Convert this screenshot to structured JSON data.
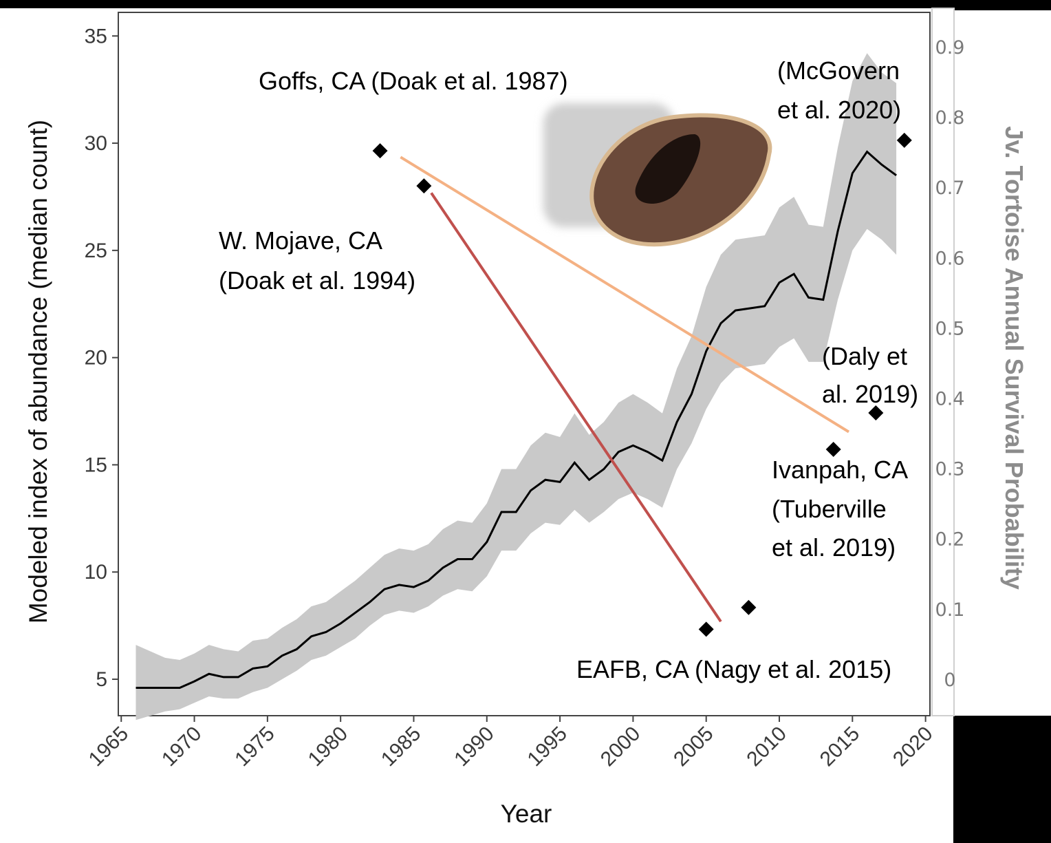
{
  "chart_data": {
    "type": "line",
    "x_label": "Year",
    "y_label": "Modeled index of abundance (median count)",
    "y2_label": "Jv. Tortoise Annual Survival Probability",
    "xlim": [
      1964.8,
      2020.3
    ],
    "xticks": [
      1965,
      1970,
      1975,
      1980,
      1985,
      1990,
      1995,
      2000,
      2005,
      2010,
      2015,
      2020
    ],
    "ylim": [
      3.3,
      36.1
    ],
    "yticks": [
      5,
      10,
      15,
      20,
      25,
      30,
      35
    ],
    "y2lim": [
      -0.052,
      0.949
    ],
    "y2ticks": [
      0,
      0.1,
      0.2,
      0.3,
      0.4,
      0.5,
      0.6,
      0.7,
      0.8,
      0.9
    ],
    "x": [
      1966,
      1967,
      1968,
      1969,
      1970,
      1971,
      1972,
      1973,
      1974,
      1975,
      1976,
      1977,
      1978,
      1979,
      1980,
      1981,
      1982,
      1983,
      1984,
      1985,
      1986,
      1987,
      1988,
      1989,
      1990,
      1991,
      1992,
      1993,
      1994,
      1995,
      1996,
      1997,
      1998,
      1999,
      2000,
      2001,
      2002,
      2003,
      2004,
      2005,
      2006,
      2007,
      2008,
      2009,
      2010,
      2011,
      2012,
      2013,
      2014,
      2015,
      2016,
      2017,
      2018
    ],
    "series": [
      {
        "color": "#000000",
        "values": [
          4.6,
          4.6,
          4.6,
          4.6,
          4.9,
          5.25,
          5.1,
          5.1,
          5.5,
          5.6,
          6.1,
          6.4,
          7.0,
          7.2,
          7.6,
          8.1,
          8.6,
          9.2,
          9.4,
          9.3,
          9.6,
          10.2,
          10.6,
          10.6,
          11.4,
          12.8,
          12.8,
          13.8,
          14.3,
          14.2,
          15.1,
          14.3,
          14.8,
          15.6,
          15.9,
          15.6,
          15.2,
          17.0,
          18.3,
          20.3,
          21.6,
          22.2,
          22.3,
          22.4,
          23.5,
          23.9,
          22.8,
          22.7,
          25.9,
          28.6,
          29.6,
          29.0,
          28.5
        ]
      }
    ],
    "band": {
      "color": "#c9c9c9",
      "lower": [
        3.1,
        3.3,
        3.5,
        3.6,
        3.9,
        4.2,
        4.1,
        4.1,
        4.4,
        4.6,
        5.0,
        5.4,
        5.9,
        6.1,
        6.5,
        6.9,
        7.5,
        8.0,
        8.2,
        8.1,
        8.4,
        8.9,
        9.2,
        9.1,
        9.8,
        11.0,
        11.0,
        11.8,
        12.3,
        12.2,
        12.9,
        12.3,
        12.8,
        13.4,
        13.7,
        13.4,
        13.0,
        14.8,
        16.0,
        17.6,
        18.8,
        19.5,
        19.6,
        19.7,
        20.5,
        20.9,
        19.8,
        19.8,
        22.7,
        25.0,
        26.0,
        25.5,
        24.8
      ],
      "upper": [
        6.6,
        6.3,
        6.0,
        5.9,
        6.2,
        6.6,
        6.4,
        6.3,
        6.8,
        6.9,
        7.4,
        7.8,
        8.4,
        8.6,
        9.1,
        9.6,
        10.2,
        10.8,
        11.1,
        11.0,
        11.3,
        12.0,
        12.4,
        12.3,
        13.2,
        14.8,
        14.8,
        15.9,
        16.5,
        16.3,
        17.4,
        16.4,
        17.0,
        17.9,
        18.3,
        17.9,
        17.4,
        19.5,
        21.0,
        23.3,
        24.8,
        25.5,
        25.6,
        25.7,
        27.0,
        27.5,
        26.2,
        26.1,
        29.8,
        32.9,
        34.2,
        33.3,
        32.8
      ]
    },
    "points": {
      "axis": "y2",
      "color": "#000000",
      "x": [
        1982.7,
        1985.7,
        2018.55,
        2016.6,
        2013.7,
        2005.0,
        2007.9
      ],
      "values": [
        0.752,
        0.702,
        0.767,
        0.379,
        0.327,
        0.071,
        0.102
      ]
    },
    "trend_lines": [
      {
        "axis": "y2",
        "color": "#f4b183",
        "x": [
          1984.1,
          2014.75
        ],
        "values": [
          0.743,
          0.352
        ]
      },
      {
        "axis": "y2",
        "color": "#c0504d",
        "x": [
          1986.2,
          2006.0
        ],
        "values": [
          0.692,
          0.082
        ]
      }
    ],
    "annotations": [
      "Goffs, CA (Doak et al. 1987)",
      "W. Mojave, CA",
      "(Doak et al. 1994)",
      "(McGovern",
      "et al. 2020)",
      "(Daly et",
      "al. 2019)",
      "Ivanpah, CA",
      "(Tuberville",
      "et al. 2019)",
      "EAFB, CA (Nagy et al. 2015)"
    ]
  }
}
